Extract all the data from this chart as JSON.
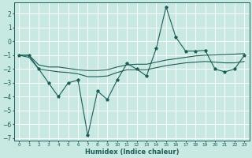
{
  "xlabel": "Humidex (Indice chaleur)",
  "xlim": [
    -0.5,
    23.5
  ],
  "ylim": [
    -7.2,
    2.8
  ],
  "yticks": [
    2,
    1,
    0,
    -1,
    -2,
    -3,
    -4,
    -5,
    -6,
    -7
  ],
  "xticks": [
    0,
    1,
    2,
    3,
    4,
    5,
    6,
    7,
    8,
    9,
    10,
    11,
    12,
    13,
    14,
    15,
    16,
    17,
    18,
    19,
    20,
    21,
    22,
    23
  ],
  "bg_color": "#c8e8e2",
  "grid_color": "#ffffff",
  "line_color": "#1a5f5a",
  "main_x": [
    0,
    1,
    2,
    3,
    4,
    5,
    6,
    7,
    8,
    9,
    10,
    11,
    12,
    13,
    14,
    15,
    16,
    17,
    18,
    19,
    20,
    21,
    22,
    23
  ],
  "main_y": [
    -1,
    -1,
    -2,
    -3,
    -4,
    -3,
    -2.8,
    -6.8,
    -3.6,
    -4.2,
    -2.8,
    -1.6,
    -2,
    -2.5,
    -0.5,
    2.5,
    0.3,
    -0.7,
    -0.7,
    -0.65,
    -2,
    -2.2,
    -2,
    -1
  ],
  "upper_x": [
    0,
    1,
    2,
    3,
    4,
    5,
    6,
    7,
    8,
    9,
    10,
    11,
    12,
    13,
    14,
    15,
    16,
    17,
    18,
    19,
    20,
    21,
    22,
    23
  ],
  "upper_y": [
    -1,
    -1.0,
    -1.7,
    -1.85,
    -1.85,
    -1.95,
    -2.05,
    -2.1,
    -2.1,
    -2.05,
    -1.85,
    -1.7,
    -1.65,
    -1.65,
    -1.5,
    -1.35,
    -1.25,
    -1.15,
    -1.05,
    -1.0,
    -0.98,
    -0.95,
    -0.92,
    -0.88
  ],
  "lower_x": [
    0,
    1,
    2,
    3,
    4,
    5,
    6,
    7,
    8,
    9,
    10,
    11,
    12,
    13,
    14,
    15,
    16,
    17,
    18,
    19,
    20,
    21,
    22,
    23
  ],
  "lower_y": [
    -1,
    -1.15,
    -2.0,
    -2.1,
    -2.2,
    -2.25,
    -2.35,
    -2.55,
    -2.55,
    -2.5,
    -2.25,
    -2.05,
    -2.05,
    -2.05,
    -1.9,
    -1.75,
    -1.65,
    -1.55,
    -1.5,
    -1.45,
    -1.5,
    -1.55,
    -1.55,
    -1.45
  ]
}
